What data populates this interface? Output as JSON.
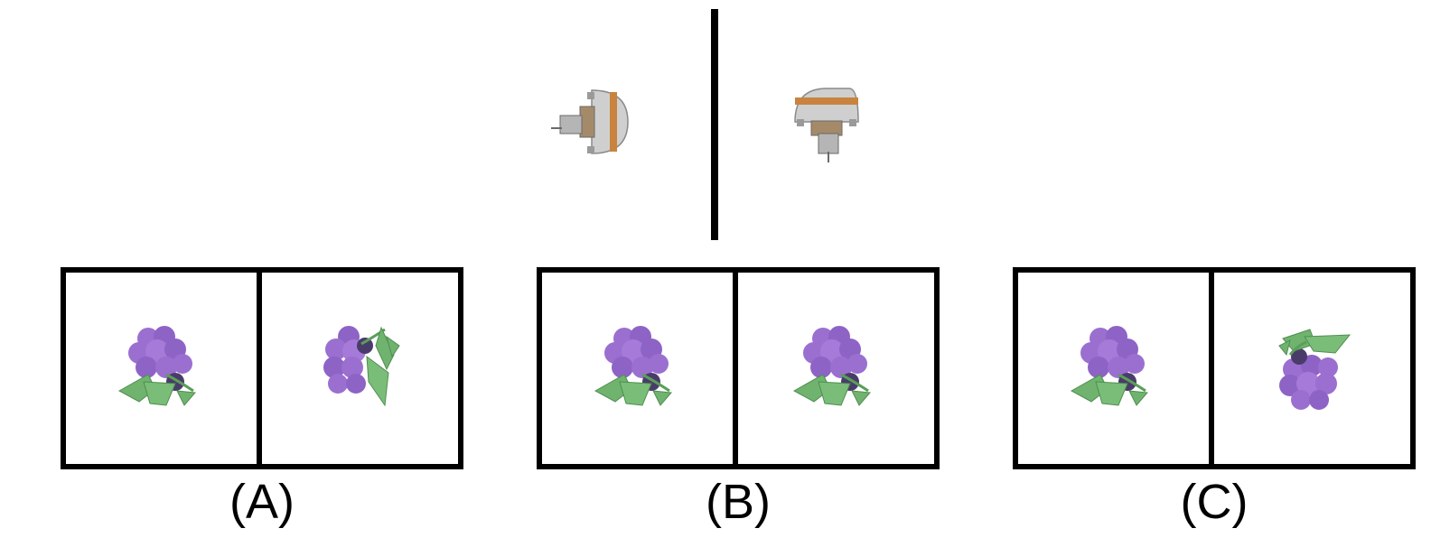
{
  "reference": {
    "left_object": "turret-object",
    "right_object": "turret-object"
  },
  "options": [
    {
      "label": "(A)",
      "left": "grape-cluster",
      "right": "grape-cluster-rotated"
    },
    {
      "label": "(B)",
      "left": "grape-cluster",
      "right": "grape-cluster"
    },
    {
      "label": "(C)",
      "left": "grape-cluster",
      "right": "grape-cluster-flipped"
    }
  ],
  "colors": {
    "grape": "#9b6fd0",
    "grape_dark": "#7d55b5",
    "leaf": "#6fb36f",
    "leaf_dark": "#4f8f4f",
    "turret_body": "#c9c9c9",
    "turret_stripe": "#c8843e",
    "border": "#000000"
  }
}
